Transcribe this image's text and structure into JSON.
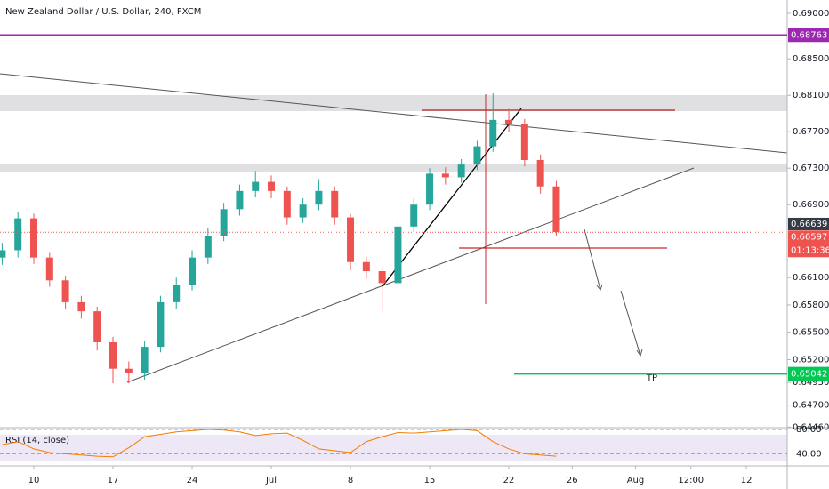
{
  "chart_data": {
    "type": "candlestick",
    "title": "New Zealand Dollar / U.S. Dollar, 240, FXCM",
    "x": [
      -2,
      -1,
      0,
      1,
      2,
      3,
      4,
      5,
      6,
      7,
      8,
      9,
      10,
      11,
      12,
      13,
      14,
      15,
      16,
      17,
      18,
      19,
      20,
      21,
      22,
      23,
      24,
      25,
      26,
      27,
      28,
      29,
      30,
      31,
      32,
      33
    ],
    "open": [
      0.6632,
      0.664,
      0.6675,
      0.6632,
      0.6607,
      0.6583,
      0.6573,
      0.6539,
      0.651,
      0.6505,
      0.6534,
      0.6583,
      0.6602,
      0.6632,
      0.6656,
      0.6685,
      0.6705,
      0.6715,
      0.6705,
      0.6676,
      0.669,
      0.6705,
      0.6676,
      0.6627,
      0.6617,
      0.6604,
      0.6666,
      0.669,
      0.6724,
      0.672,
      0.6734,
      0.6754,
      0.6783,
      0.6778,
      0.6739,
      0.671
    ],
    "high": [
      0.6648,
      0.6682,
      0.668,
      0.6638,
      0.6612,
      0.659,
      0.6578,
      0.6545,
      0.6518,
      0.654,
      0.659,
      0.661,
      0.664,
      0.6664,
      0.6692,
      0.6712,
      0.6727,
      0.6722,
      0.671,
      0.6697,
      0.6718,
      0.671,
      0.668,
      0.6633,
      0.6622,
      0.6672,
      0.6697,
      0.673,
      0.6731,
      0.674,
      0.676,
      0.6812,
      0.6795,
      0.6784,
      0.6745,
      0.6716
    ],
    "low": [
      0.6624,
      0.6632,
      0.6625,
      0.66,
      0.6575,
      0.6565,
      0.653,
      0.6494,
      0.6494,
      0.6498,
      0.6528,
      0.6576,
      0.6596,
      0.6625,
      0.665,
      0.6678,
      0.6698,
      0.6697,
      0.6668,
      0.667,
      0.6684,
      0.6668,
      0.6618,
      0.6609,
      0.6573,
      0.6598,
      0.666,
      0.6684,
      0.6712,
      0.6714,
      0.6728,
      0.6748,
      0.677,
      0.6732,
      0.6702,
      0.6655
    ],
    "close": [
      0.664,
      0.6675,
      0.6632,
      0.6607,
      0.6583,
      0.6573,
      0.6539,
      0.651,
      0.6505,
      0.6534,
      0.6583,
      0.6602,
      0.6632,
      0.6656,
      0.6685,
      0.6705,
      0.6715,
      0.6705,
      0.6676,
      0.669,
      0.6705,
      0.6676,
      0.6627,
      0.6617,
      0.6604,
      0.6666,
      0.669,
      0.6724,
      0.672,
      0.6734,
      0.6754,
      0.6783,
      0.6778,
      0.6739,
      0.671,
      0.666
    ],
    "up_color": "#26a69a",
    "down_color": "#ef5350",
    "xlim": [
      -2.135,
      47.58
    ],
    "xticks": [
      {
        "value": 0,
        "label": "10"
      },
      {
        "value": 5,
        "label": "17"
      },
      {
        "value": 10,
        "label": "24"
      },
      {
        "value": 15,
        "label": "Jul"
      },
      {
        "value": 20,
        "label": "8"
      },
      {
        "value": 25,
        "label": "15"
      },
      {
        "value": 30,
        "label": "22"
      },
      {
        "value": 34,
        "label": "26"
      },
      {
        "value": 38,
        "label": "Aug"
      },
      {
        "value": 41.5,
        "label": "12:00"
      },
      {
        "value": 45,
        "label": "12"
      }
    ],
    "ylim": [
      0.64463,
      0.69146
    ],
    "yticks": [
      {
        "value": 0.69,
        "label": "0.69000"
      },
      {
        "value": 0.685,
        "label": "0.68500"
      },
      {
        "value": 0.681,
        "label": "0.68100"
      },
      {
        "value": 0.677,
        "label": "0.67700"
      },
      {
        "value": 0.673,
        "label": "0.67300"
      },
      {
        "value": 0.669,
        "label": "0.66900"
      },
      {
        "value": 0.661,
        "label": "0.66100"
      },
      {
        "value": 0.658,
        "label": "0.65800"
      },
      {
        "value": 0.655,
        "label": "0.65500"
      },
      {
        "value": 0.652,
        "label": "0.65200"
      },
      {
        "value": 0.6495,
        "label": "0.64950"
      },
      {
        "value": 0.647,
        "label": "0.64700"
      },
      {
        "value": 0.6446,
        "label": "0.64460"
      }
    ],
    "levels": [
      {
        "value": 0.68763,
        "color": "#9c27b0"
      },
      {
        "value": 0.65042,
        "color": "#00c853"
      }
    ],
    "price_tags": [
      {
        "value": 0.66639,
        "color": "#363a45"
      },
      {
        "value": 0.66597,
        "color": "#ef5350"
      }
    ],
    "countdown": "01:13:36",
    "tp_label": "TP",
    "rsi": {
      "title": "RSI (14, close)",
      "color": "#f57c00",
      "values": [
        55,
        60,
        48,
        42,
        40,
        38,
        36,
        35,
        50,
        68,
        72,
        76,
        78,
        80,
        79,
        76,
        70,
        73,
        74,
        62,
        48,
        45,
        42,
        60,
        68,
        75,
        74,
        76,
        78,
        80,
        78,
        60,
        48,
        40,
        38,
        36
      ],
      "ylim": [
        23,
        83
      ],
      "yticks": [
        {
          "value": 80,
          "label": "80.00"
        },
        {
          "value": 40,
          "label": "40.00"
        }
      ]
    }
  }
}
